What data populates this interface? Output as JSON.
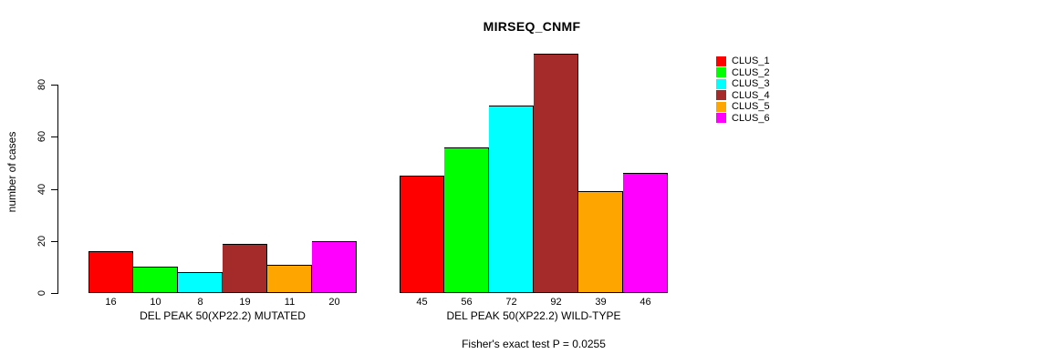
{
  "chart_data": {
    "type": "bar",
    "title": "MIRSEQ_CNMF",
    "ylabel": "number of cases",
    "xlabel": "",
    "categories": [
      "DEL PEAK 50(XP22.2) MUTATED",
      "DEL PEAK 50(XP22.2) WILD-TYPE"
    ],
    "series": [
      {
        "name": "CLUS_1",
        "color": "#FF0000",
        "values": [
          16,
          45
        ]
      },
      {
        "name": "CLUS_2",
        "color": "#00FF00",
        "values": [
          10,
          56
        ]
      },
      {
        "name": "CLUS_3",
        "color": "#00FFFF",
        "values": [
          8,
          72
        ]
      },
      {
        "name": "CLUS_4",
        "color": "#A52A2A",
        "values": [
          19,
          92
        ]
      },
      {
        "name": "CLUS_5",
        "color": "#FFA500",
        "values": [
          11,
          39
        ]
      },
      {
        "name": "CLUS_6",
        "color": "#FF00FF",
        "values": [
          20,
          46
        ]
      }
    ],
    "yticks": [
      0,
      20,
      40,
      60,
      80
    ],
    "ylim": [
      0,
      92
    ],
    "grid": false,
    "show_bar_value_labels": true,
    "legend_position": "right",
    "annotation": "Fisher's exact test P = 0.0255",
    "bar_border_color": "#000000",
    "background_color": "#FFFFFF",
    "text_color": "#000000"
  }
}
